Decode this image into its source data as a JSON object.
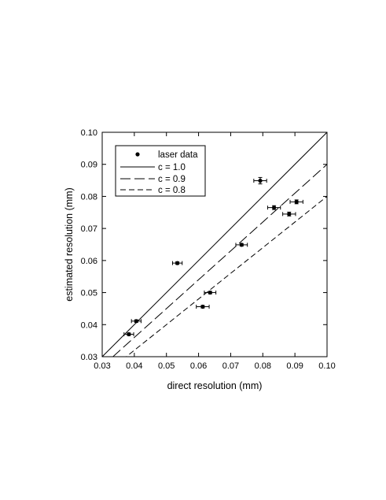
{
  "chart_data": {
    "type": "scatter",
    "xlabel": "direct resolution (mm)",
    "ylabel": "estimated resolution (mm)",
    "xlim": [
      0.03,
      0.1
    ],
    "ylim": [
      0.03,
      0.1
    ],
    "x_ticks": [
      "0.03",
      "0.04",
      "0.05",
      "0.06",
      "0.07",
      "0.08",
      "0.09",
      "0.10"
    ],
    "y_ticks": [
      "0.03",
      "0.04",
      "0.05",
      "0.06",
      "0.07",
      "0.08",
      "0.09",
      "0.10"
    ],
    "grid": false,
    "legend_position": "top-left",
    "series": [
      {
        "name": "laser data",
        "kind": "points-with-error-bars",
        "x": [
          0.0383,
          0.0406,
          0.0534,
          0.0613,
          0.0636,
          0.0734,
          0.0792,
          0.0835,
          0.0882,
          0.0905
        ],
        "y": [
          0.037,
          0.0411,
          0.0592,
          0.0456,
          0.05,
          0.0649,
          0.0849,
          0.0765,
          0.0745,
          0.0783
        ],
        "xerr": [
          0.0015,
          0.0015,
          0.0015,
          0.002,
          0.0018,
          0.0018,
          0.002,
          0.002,
          0.002,
          0.002
        ],
        "yerr": [
          0.0004,
          0.0004,
          0.0004,
          0.0004,
          0.0004,
          0.0004,
          0.001,
          0.0006,
          0.0006,
          0.0006
        ]
      },
      {
        "name": "c = 1.0",
        "kind": "line",
        "slope": 1.0,
        "dash": "solid"
      },
      {
        "name": "c = 0.9",
        "kind": "line",
        "slope": 0.9,
        "dash": "long-dash"
      },
      {
        "name": "c = 0.8",
        "kind": "line",
        "slope": 0.8,
        "dash": "short-dash"
      }
    ]
  }
}
